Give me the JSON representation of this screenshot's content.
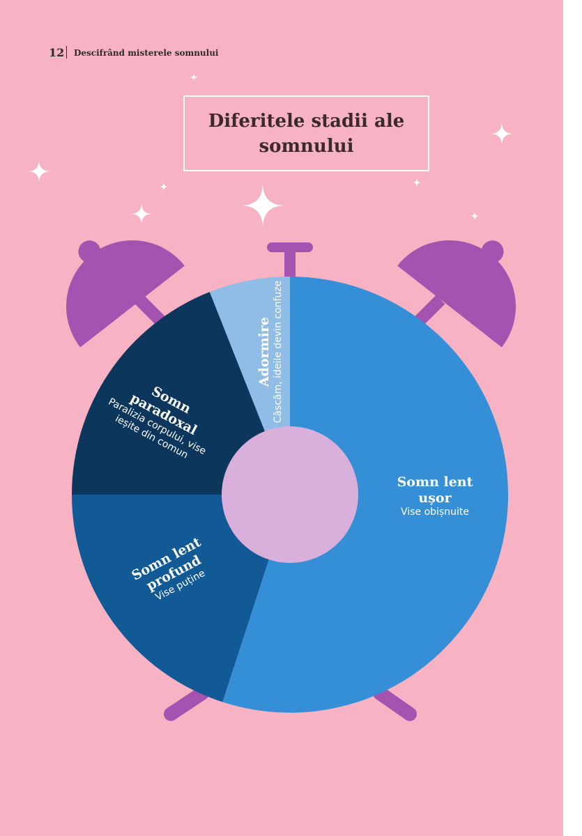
{
  "page_header": {
    "page_number": "12",
    "running_title": "Descifrând misterele somnului"
  },
  "chart_data": {
    "type": "pie",
    "title": "Diferitele stadii ale somnului",
    "categories": [
      "Somn lent ușor",
      "Somn lent profund",
      "Somn paradoxal",
      "Adormire"
    ],
    "descriptions": [
      "Vise obișnuite",
      "Vise puține",
      "Paralizia corpului, vise ieșite din comun",
      "Căscăm, ideile devin confuze"
    ],
    "values": [
      55,
      20,
      19,
      6
    ],
    "colors": [
      "#348fd6",
      "#115a96",
      "#0d365d",
      "#8fbde6"
    ]
  }
}
